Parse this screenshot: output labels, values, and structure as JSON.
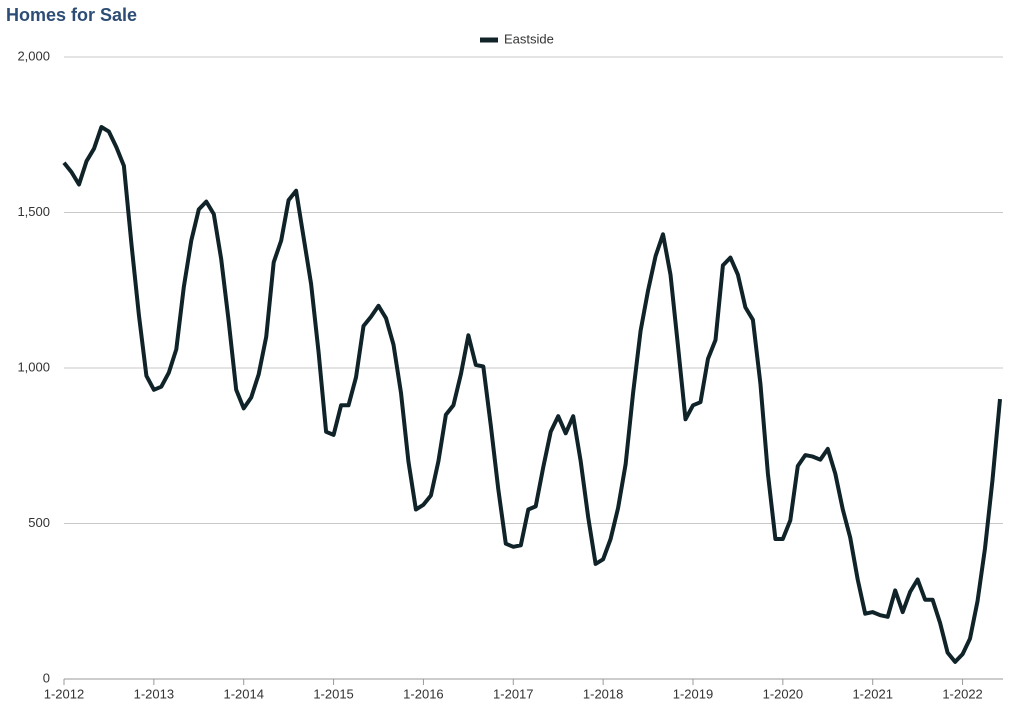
{
  "chart_data": {
    "type": "line",
    "title": "Homes for Sale",
    "categories": [
      "1-2012",
      null,
      null,
      null,
      null,
      null,
      null,
      null,
      null,
      null,
      null,
      null,
      "1-2013",
      null,
      null,
      null,
      null,
      null,
      null,
      null,
      null,
      null,
      null,
      null,
      "1-2014",
      null,
      null,
      null,
      null,
      null,
      null,
      null,
      null,
      null,
      null,
      null,
      "1-2015",
      null,
      null,
      null,
      null,
      null,
      null,
      null,
      null,
      null,
      null,
      null,
      "1-2016",
      null,
      null,
      null,
      null,
      null,
      null,
      null,
      null,
      null,
      null,
      null,
      "1-2017",
      null,
      null,
      null,
      null,
      null,
      null,
      null,
      null,
      null,
      null,
      null,
      "1-2018",
      null,
      null,
      null,
      null,
      null,
      null,
      null,
      null,
      null,
      null,
      null,
      "1-2019",
      null,
      null,
      null,
      null,
      null,
      null,
      null,
      null,
      null,
      null,
      null,
      "1-2020",
      null,
      null,
      null,
      null,
      null,
      null,
      null,
      null,
      null,
      null,
      null,
      "1-2021",
      null,
      null,
      null,
      null,
      null,
      null,
      null,
      null,
      null,
      null,
      null,
      "1-2022",
      null,
      null,
      null,
      null,
      null
    ],
    "series": [
      {
        "name": "Eastside",
        "color": "#0f2328",
        "values": [
          1660,
          1630,
          1590,
          1665,
          1705,
          1775,
          1760,
          1710,
          1650,
          1400,
          1170,
          975,
          930,
          940,
          985,
          1060,
          1260,
          1410,
          1510,
          1535,
          1495,
          1350,
          1150,
          930,
          870,
          905,
          980,
          1100,
          1340,
          1410,
          1540,
          1570,
          1420,
          1270,
          1050,
          795,
          785,
          880,
          880,
          970,
          1135,
          1165,
          1200,
          1160,
          1075,
          920,
          700,
          545,
          560,
          590,
          700,
          850,
          880,
          980,
          1105,
          1010,
          1005,
          815,
          610,
          435,
          425,
          430,
          545,
          555,
          680,
          795,
          845,
          790,
          845,
          700,
          520,
          370,
          385,
          450,
          550,
          690,
          920,
          1120,
          1250,
          1360,
          1430,
          1300,
          1070,
          835,
          880,
          890,
          1030,
          1090,
          1330,
          1355,
          1300,
          1195,
          1155,
          950,
          660,
          450,
          450,
          510,
          685,
          720,
          715,
          705,
          740,
          660,
          545,
          455,
          320,
          210,
          215,
          205,
          200,
          285,
          215,
          280,
          320,
          255,
          255,
          180,
          85,
          55,
          80,
          130,
          250,
          420,
          640,
          900
        ]
      }
    ],
    "ylim": [
      0,
      2000
    ],
    "yticks": [
      0,
      500,
      {
        "value": 1000,
        "label": "1,000"
      },
      {
        "value": 1500,
        "label": "1,500"
      },
      {
        "value": 2000,
        "label": "2,000"
      }
    ],
    "grid": true
  }
}
